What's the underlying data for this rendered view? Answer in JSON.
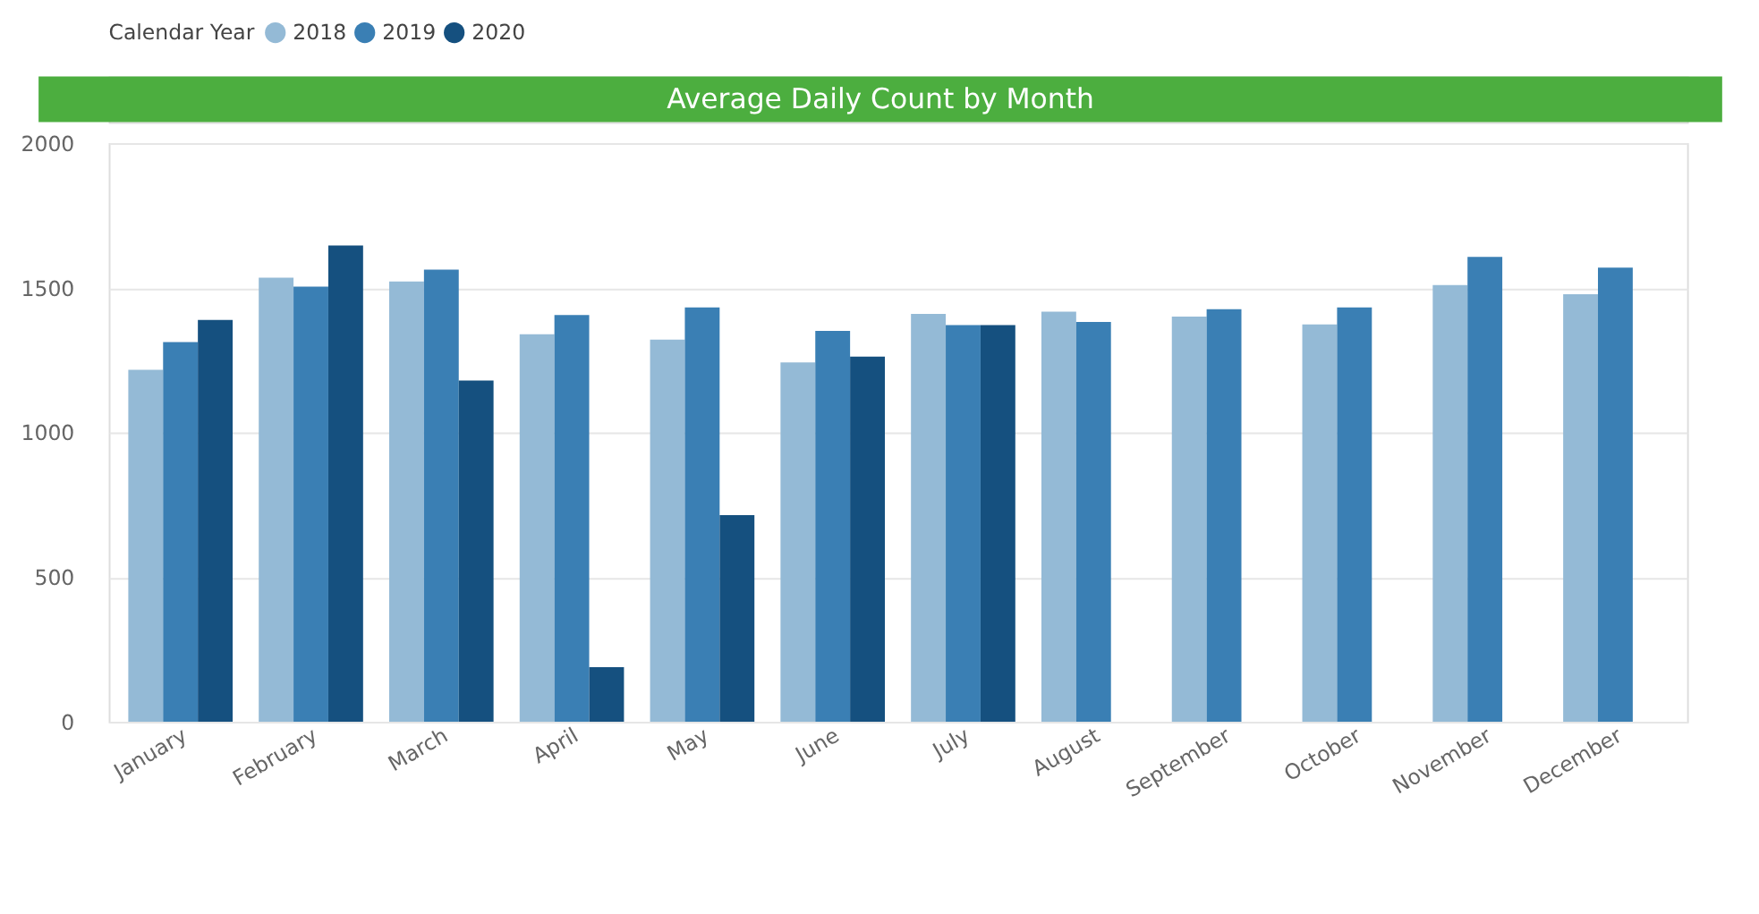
{
  "chart_data": {
    "type": "bar",
    "title": "Average Daily Count by Month",
    "legend_title": "Calendar Year",
    "categories": [
      "January",
      "February",
      "March",
      "April",
      "May",
      "June",
      "July",
      "August",
      "September",
      "October",
      "November",
      "December"
    ],
    "series": [
      {
        "name": "2018",
        "color": "#94bad6",
        "values": [
          1216,
          1535,
          1522,
          1339,
          1321,
          1242,
          1410,
          1417,
          1400,
          1373,
          1509,
          1478
        ]
      },
      {
        "name": "2019",
        "color": "#3a7fb4",
        "values": [
          1312,
          1504,
          1563,
          1406,
          1432,
          1351,
          1371,
          1382,
          1426,
          1432,
          1607,
          1570
        ]
      },
      {
        "name": "2020",
        "color": "#15507f",
        "values": [
          1389,
          1646,
          1179,
          188,
          714,
          1262,
          1371,
          null,
          null,
          null,
          null,
          null
        ]
      }
    ],
    "ylim": [
      0,
      2000
    ],
    "yticks": [
      0,
      500,
      1000,
      1500,
      2000
    ],
    "grid": "y",
    "legend": "top left"
  }
}
